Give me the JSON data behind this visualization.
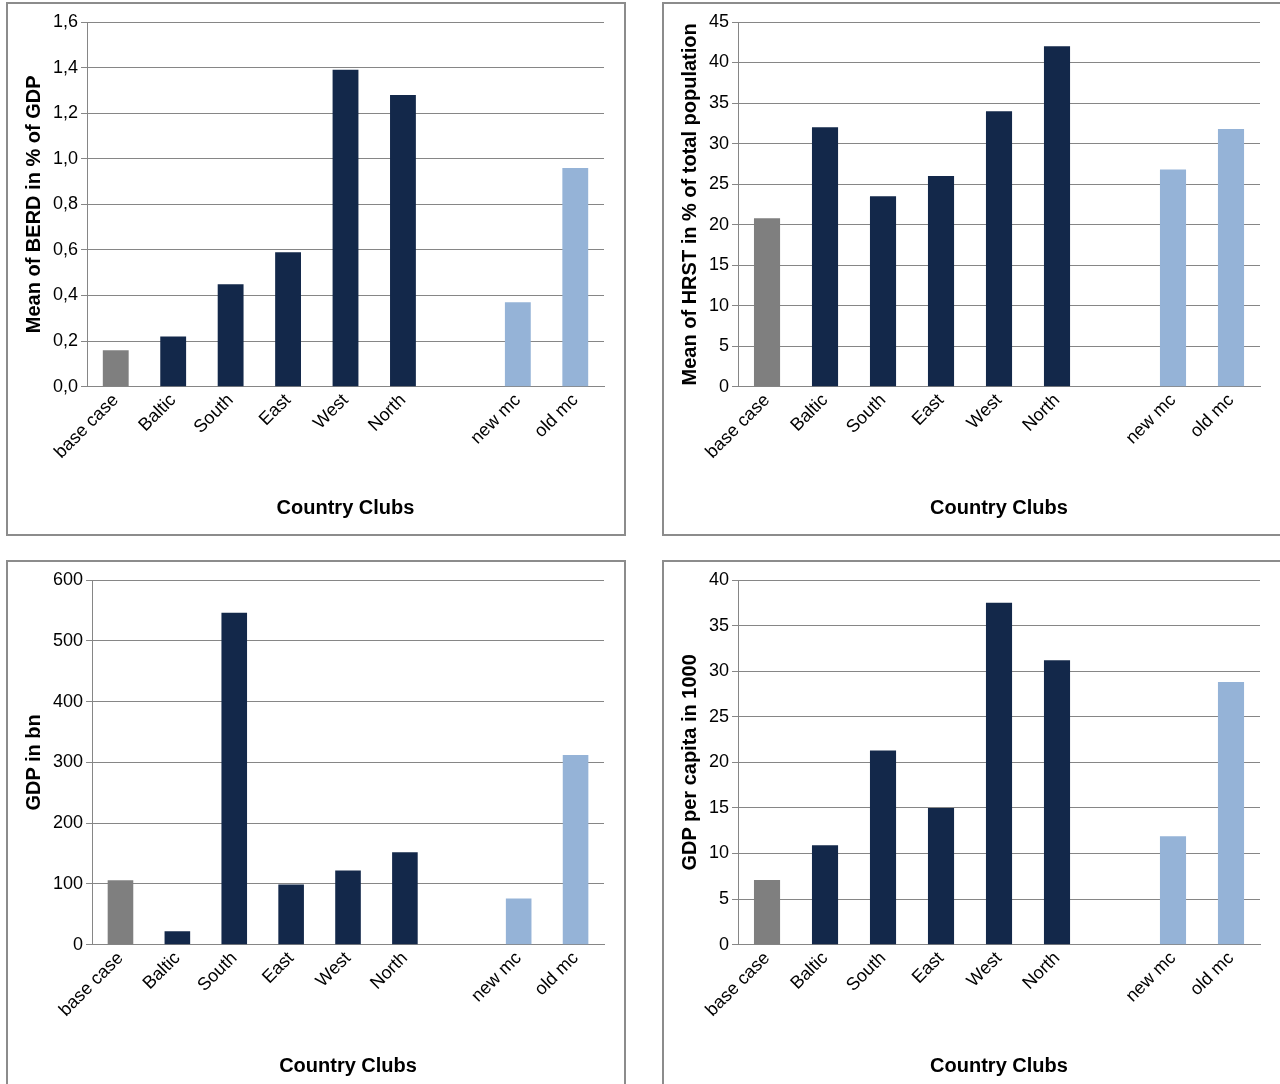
{
  "chart_data": [
    {
      "type": "bar",
      "xlabel": "Country Clubs",
      "ylabel": "Mean of BERD in % of GDP",
      "categories": [
        "base case",
        "Baltic",
        "South",
        "East",
        "West",
        "North",
        null,
        "new mc",
        "old mc"
      ],
      "values": [
        0.16,
        0.22,
        0.45,
        0.59,
        1.39,
        1.28,
        null,
        0.37,
        0.96
      ],
      "colors": [
        "#7f7f7f",
        "#13284a",
        "#13284a",
        "#13284a",
        "#13284a",
        "#13284a",
        "#13284a",
        "#95b3d7",
        "#95b3d7"
      ],
      "ylim": [
        0,
        1.6
      ],
      "yticks": [
        {
          "value": 0,
          "label": "0,0"
        },
        {
          "value": 0.2,
          "label": "0,2"
        },
        {
          "value": 0.4,
          "label": "0,4"
        },
        {
          "value": 0.6,
          "label": "0,6"
        },
        {
          "value": 0.8,
          "label": "0,8"
        },
        {
          "value": 1,
          "label": "1,0"
        },
        {
          "value": 1.2,
          "label": "1,2"
        },
        {
          "value": 1.4,
          "label": "1,4"
        },
        {
          "value": 1.6,
          "label": "1,6"
        }
      ],
      "grid": "y",
      "legend": false
    },
    {
      "type": "bar",
      "xlabel": "Country Clubs",
      "ylabel": "Mean of HRST in % of total population",
      "categories": [
        "base case",
        "Baltic",
        "South",
        "East",
        "West",
        "North",
        null,
        "new mc",
        "old mc"
      ],
      "values": [
        20.8,
        32,
        23.5,
        26,
        34,
        42,
        null,
        26.8,
        31.8
      ],
      "colors": [
        "#7f7f7f",
        "#13284a",
        "#13284a",
        "#13284a",
        "#13284a",
        "#13284a",
        "#13284a",
        "#95b3d7",
        "#95b3d7"
      ],
      "ylim": [
        0,
        45
      ],
      "yticks": [
        0,
        5,
        10,
        15,
        20,
        25,
        30,
        35,
        40,
        45
      ],
      "grid": "y",
      "legend": false
    },
    {
      "type": "bar",
      "xlabel": "Country Clubs",
      "ylabel": "GDP in bn",
      "categories": [
        "base case",
        "Baltic",
        "South",
        "East",
        "West",
        "North",
        null,
        "new mc",
        "old mc"
      ],
      "values": [
        106,
        22,
        546,
        99,
        122,
        152,
        null,
        76,
        312
      ],
      "colors": [
        "#7f7f7f",
        "#13284a",
        "#13284a",
        "#13284a",
        "#13284a",
        "#13284a",
        "#13284a",
        "#95b3d7",
        "#95b3d7"
      ],
      "ylim": [
        0,
        600
      ],
      "yticks": [
        0,
        100,
        200,
        300,
        400,
        500,
        600
      ],
      "grid": "y",
      "legend": false
    },
    {
      "type": "bar",
      "xlabel": "Country Clubs",
      "ylabel": "GDP per capita in 1000",
      "categories": [
        "base case",
        "Baltic",
        "South",
        "East",
        "West",
        "North",
        null,
        "new mc",
        "old mc"
      ],
      "values": [
        7.1,
        10.9,
        21.3,
        15,
        37.5,
        31.2,
        null,
        11.9,
        28.8
      ],
      "colors": [
        "#7f7f7f",
        "#13284a",
        "#13284a",
        "#13284a",
        "#13284a",
        "#13284a",
        "#13284a",
        "#95b3d7",
        "#95b3d7"
      ],
      "ylim": [
        0,
        40
      ],
      "yticks": [
        0,
        5,
        10,
        15,
        20,
        25,
        30,
        35,
        40
      ],
      "grid": "y",
      "legend": false
    }
  ]
}
